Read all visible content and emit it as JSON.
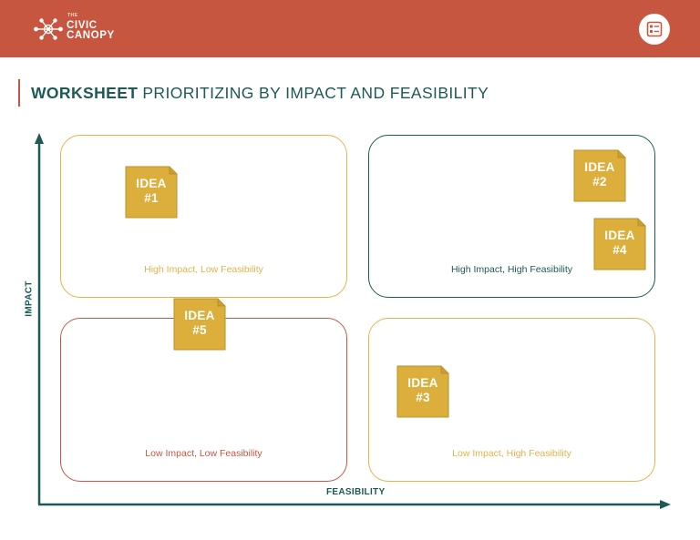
{
  "header": {
    "logo_the": "THE",
    "logo_line1": "CIVIC",
    "logo_line2": "CANOPY",
    "bar_color": "#c65640",
    "doc_icon": "worksheet-document-icon"
  },
  "title": {
    "strong": "WORKSHEET",
    "rest": "PRIORITIZING BY IMPACT AND FEASIBILITY"
  },
  "axes": {
    "y_label": "IMPACT",
    "x_label": "FEASIBILITY"
  },
  "quadrants": {
    "high_low": "High Impact, Low Feasibility",
    "high_high": "High Impact, High Feasibility",
    "low_low": "Low Impact, Low Feasibility",
    "low_high": "Low Impact, High Feasibility"
  },
  "ideas": [
    {
      "word": "IDEA",
      "num": "#1"
    },
    {
      "word": "IDEA",
      "num": "#2"
    },
    {
      "word": "IDEA",
      "num": "#3"
    },
    {
      "word": "IDEA",
      "num": "#4"
    },
    {
      "word": "IDEA",
      "num": "#5"
    }
  ],
  "colors": {
    "teal": "#1d5a55",
    "gold": "#e1b44a",
    "note": "#dcaf3c",
    "red": "#c65640"
  }
}
